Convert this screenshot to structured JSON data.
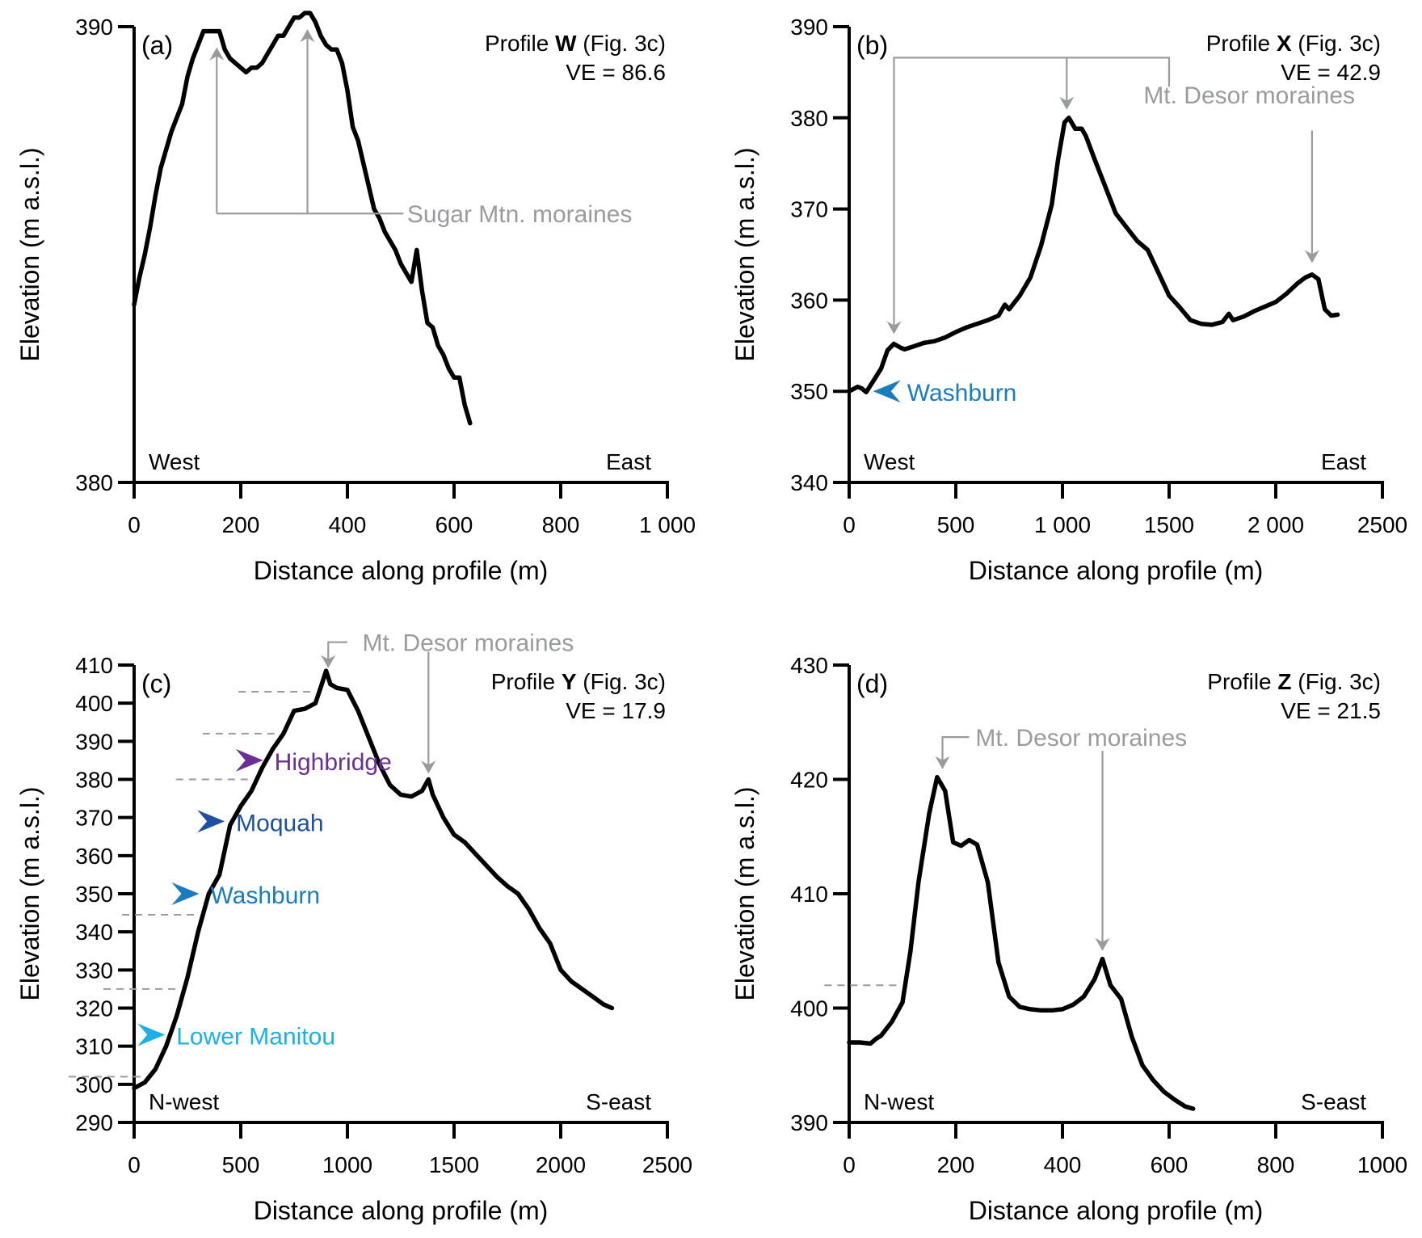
{
  "figure": {
    "colors": {
      "profile_line": "#000000",
      "annotation_gray": "#9a9b9e",
      "washburn_blue": "#1a7bbf",
      "moquah_blue": "#1f4fa0",
      "highbridge_purple": "#6b2f96",
      "lower_manitou_cyan": "#1bb1e6"
    }
  },
  "chart_data": [
    {
      "id": "a",
      "type": "line",
      "panel_label": "(a)",
      "title_prefix": "Profile ",
      "title_bold": "W",
      "title_suffix": " (Fig. 3c)",
      "ve_label": "VE = 86.6",
      "xlabel": "Distance along profile (m)",
      "ylabel": "Elevation (m a.s.l.)",
      "xlim": [
        0,
        1000
      ],
      "ylim": [
        380,
        390
      ],
      "xticks": [
        0,
        200,
        400,
        600,
        800,
        1000
      ],
      "xtick_labels": [
        "0",
        "200",
        "400",
        "600",
        "800",
        "1 000"
      ],
      "yticks": [
        380,
        390
      ],
      "ytick_labels": [
        "380",
        "390"
      ],
      "grid": false,
      "direction_left": "West",
      "direction_right": "East",
      "series": [
        {
          "name": "Profile W",
          "x": [
            0,
            10,
            20,
            30,
            40,
            50,
            60,
            70,
            80,
            90,
            100,
            110,
            120,
            130,
            140,
            150,
            160,
            170,
            180,
            190,
            200,
            210,
            220,
            230,
            240,
            250,
            260,
            270,
            280,
            290,
            300,
            310,
            320,
            330,
            340,
            350,
            360,
            370,
            380,
            390,
            400,
            410,
            420,
            430,
            440,
            450,
            460,
            470,
            480,
            490,
            500,
            510,
            520,
            530,
            540,
            550,
            560,
            570,
            580,
            590,
            600,
            610,
            620,
            630
          ],
          "y": [
            383.9,
            384.5,
            385.0,
            385.6,
            386.3,
            386.9,
            387.3,
            387.7,
            388.0,
            388.3,
            388.9,
            389.3,
            389.6,
            389.9,
            389.9,
            389.9,
            389.9,
            389.5,
            389.3,
            389.2,
            389.1,
            389.0,
            389.1,
            389.1,
            389.2,
            389.4,
            389.6,
            389.8,
            389.8,
            390.0,
            390.2,
            390.2,
            390.3,
            390.3,
            390.1,
            389.8,
            389.6,
            389.5,
            389.5,
            389.2,
            388.6,
            387.8,
            387.5,
            387.0,
            386.5,
            386.0,
            385.8,
            385.5,
            385.3,
            385.1,
            384.8,
            384.6,
            384.4,
            385.1,
            384.2,
            383.5,
            383.4,
            383.0,
            382.8,
            382.5,
            382.3,
            382.3,
            381.7,
            381.3
          ]
        }
      ],
      "annotations": [
        {
          "text": "Sugar Mtn. moraines",
          "targets_x": [
            155,
            325
          ]
        }
      ]
    },
    {
      "id": "b",
      "type": "line",
      "panel_label": "(b)",
      "title_prefix": "Profile ",
      "title_bold": "X",
      "title_suffix": " (Fig. 3c)",
      "ve_label": "VE = 42.9",
      "xlabel": "Distance along profile (m)",
      "ylabel": "Elevation (m a.s.l.)",
      "xlim": [
        0,
        2500
      ],
      "ylim": [
        340,
        390
      ],
      "xticks": [
        0,
        500,
        1000,
        1500,
        2000,
        2500
      ],
      "xtick_labels": [
        "0",
        "500",
        "1 000",
        "1500",
        "2 000",
        "2500"
      ],
      "yticks": [
        340,
        350,
        360,
        370,
        380,
        390
      ],
      "ytick_labels": [
        "340",
        "350",
        "360",
        "370",
        "380",
        "390"
      ],
      "grid": false,
      "direction_left": "West",
      "direction_right": "East",
      "series": [
        {
          "name": "Profile X",
          "x": [
            0,
            40,
            60,
            80,
            110,
            150,
            180,
            210,
            240,
            260,
            300,
            350,
            400,
            450,
            500,
            550,
            600,
            650,
            700,
            730,
            750,
            800,
            850,
            900,
            950,
            980,
            1010,
            1030,
            1060,
            1090,
            1110,
            1150,
            1200,
            1250,
            1300,
            1350,
            1400,
            1450,
            1500,
            1550,
            1600,
            1650,
            1700,
            1750,
            1780,
            1800,
            1850,
            1900,
            1950,
            2000,
            2050,
            2100,
            2140,
            2170,
            2200,
            2230,
            2260,
            2290
          ],
          "y": [
            350,
            350.5,
            350.3,
            349.9,
            351,
            352.5,
            354.5,
            355.2,
            354.8,
            354.6,
            354.9,
            355.3,
            355.5,
            355.9,
            356.5,
            357,
            357.4,
            357.8,
            358.3,
            359.5,
            359,
            360.5,
            362.5,
            366,
            370.5,
            375.5,
            379.5,
            380,
            378.8,
            378.8,
            378,
            375.5,
            372.5,
            369.5,
            368,
            366.5,
            365.5,
            363,
            360.5,
            359.2,
            357.8,
            357.4,
            357.3,
            357.6,
            358.5,
            357.8,
            358.2,
            358.8,
            359.3,
            359.8,
            360.7,
            361.8,
            362.5,
            362.8,
            362.3,
            359,
            358.3,
            358.4
          ]
        }
      ],
      "annotations": [
        {
          "text": "Mt. Desor moraines",
          "targets_x": [
            210,
            1020,
            2170
          ]
        },
        {
          "text": "Washburn",
          "marker": "left-arrow",
          "x": 90,
          "y": 350,
          "color_key": "washburn_blue"
        }
      ]
    },
    {
      "id": "c",
      "type": "line",
      "panel_label": "(c)",
      "title_prefix": "Profile ",
      "title_bold": "Y",
      "title_suffix": " (Fig. 3c)",
      "ve_label": "VE = 17.9",
      "xlabel": "Distance along profile (m)",
      "ylabel": "Elevation (m a.s.l.)",
      "xlim": [
        0,
        2500
      ],
      "ylim": [
        290,
        410
      ],
      "xticks": [
        0,
        500,
        1000,
        1500,
        2000,
        2500
      ],
      "xtick_labels": [
        "0",
        "500",
        "1000",
        "1500",
        "2000",
        "2500"
      ],
      "yticks": [
        290,
        300,
        310,
        320,
        330,
        340,
        350,
        360,
        370,
        380,
        390,
        400,
        410
      ],
      "ytick_labels": [
        "290",
        "300",
        "310",
        "320",
        "330",
        "340",
        "350",
        "360",
        "370",
        "380",
        "390",
        "400",
        "410"
      ],
      "grid": false,
      "direction_left": "N-west",
      "direction_right": "S-east",
      "series": [
        {
          "name": "Profile Y",
          "x": [
            0,
            50,
            100,
            150,
            200,
            250,
            300,
            350,
            400,
            450,
            500,
            550,
            600,
            650,
            700,
            750,
            800,
            850,
            880,
            900,
            920,
            950,
            1000,
            1050,
            1100,
            1150,
            1200,
            1250,
            1300,
            1350,
            1380,
            1400,
            1450,
            1500,
            1550,
            1600,
            1650,
            1700,
            1750,
            1800,
            1850,
            1900,
            1950,
            2000,
            2050,
            2100,
            2150,
            2200,
            2240
          ],
          "y": [
            299,
            300.5,
            304,
            310,
            318,
            328,
            340,
            350,
            355,
            368,
            373,
            377,
            383,
            388,
            392,
            398,
            398.5,
            400,
            405,
            408.5,
            405,
            404,
            403.5,
            398,
            391,
            384,
            378.5,
            376,
            375.5,
            377,
            380,
            376,
            370,
            365.5,
            363.5,
            360.5,
            357.5,
            354.5,
            352,
            350,
            346,
            341,
            337,
            330,
            327,
            325,
            323,
            321,
            320
          ]
        }
      ],
      "dashed_levels": [
        403,
        392,
        380,
        344.5,
        325,
        302
      ],
      "annotations": [
        {
          "text": "Mt. Desor moraines",
          "targets_x": [
            910,
            1380
          ]
        },
        {
          "text": "Highbridge",
          "marker": "right-arrow",
          "x": 620,
          "y": 385,
          "color_key": "highbridge_purple"
        },
        {
          "text": "Moquah",
          "marker": "right-arrow",
          "x": 440,
          "y": 369,
          "color_key": "moquah_blue"
        },
        {
          "text": "Washburn",
          "marker": "right-arrow",
          "x": 320,
          "y": 350,
          "color_key": "washburn_blue"
        },
        {
          "text": "Lower Manitou",
          "marker": "right-arrow",
          "x": 160,
          "y": 313,
          "color_key": "lower_manitou_cyan"
        }
      ]
    },
    {
      "id": "d",
      "type": "line",
      "panel_label": "(d)",
      "title_prefix": "Profile ",
      "title_bold": "Z",
      "title_suffix": " (Fig. 3c)",
      "ve_label": "VE = 21.5",
      "xlabel": "Distance along profile (m)",
      "ylabel": "Elevation (m a.s.l.)",
      "xlim": [
        0,
        1000
      ],
      "ylim": [
        390,
        430
      ],
      "xticks": [
        0,
        200,
        400,
        600,
        800,
        1000
      ],
      "xtick_labels": [
        "0",
        "200",
        "400",
        "600",
        "800",
        "1000"
      ],
      "yticks": [
        390,
        400,
        410,
        420,
        430
      ],
      "ytick_labels": [
        "390",
        "400",
        "410",
        "420",
        "430"
      ],
      "grid": false,
      "direction_left": "N-west",
      "direction_right": "S-east",
      "series": [
        {
          "name": "Profile Z",
          "x": [
            0,
            20,
            40,
            50,
            60,
            80,
            100,
            115,
            130,
            150,
            165,
            180,
            195,
            210,
            225,
            240,
            260,
            280,
            300,
            320,
            340,
            360,
            380,
            400,
            420,
            440,
            460,
            475,
            490,
            510,
            530,
            550,
            570,
            590,
            610,
            630,
            645
          ],
          "y": [
            397,
            397,
            396.9,
            397.3,
            397.6,
            398.8,
            400.5,
            405,
            411,
            417,
            420.2,
            419,
            414.5,
            414.2,
            414.7,
            414.3,
            411,
            404,
            401,
            400.1,
            399.9,
            399.8,
            399.8,
            399.9,
            400.3,
            401,
            402.5,
            404.3,
            402,
            400.8,
            397.5,
            395,
            393.7,
            392.7,
            392,
            391.4,
            391.2
          ]
        }
      ],
      "dashed_levels": [
        402
      ],
      "annotations": [
        {
          "text": "Mt. Desor moraines",
          "targets_x": [
            175,
            475
          ]
        }
      ]
    }
  ]
}
